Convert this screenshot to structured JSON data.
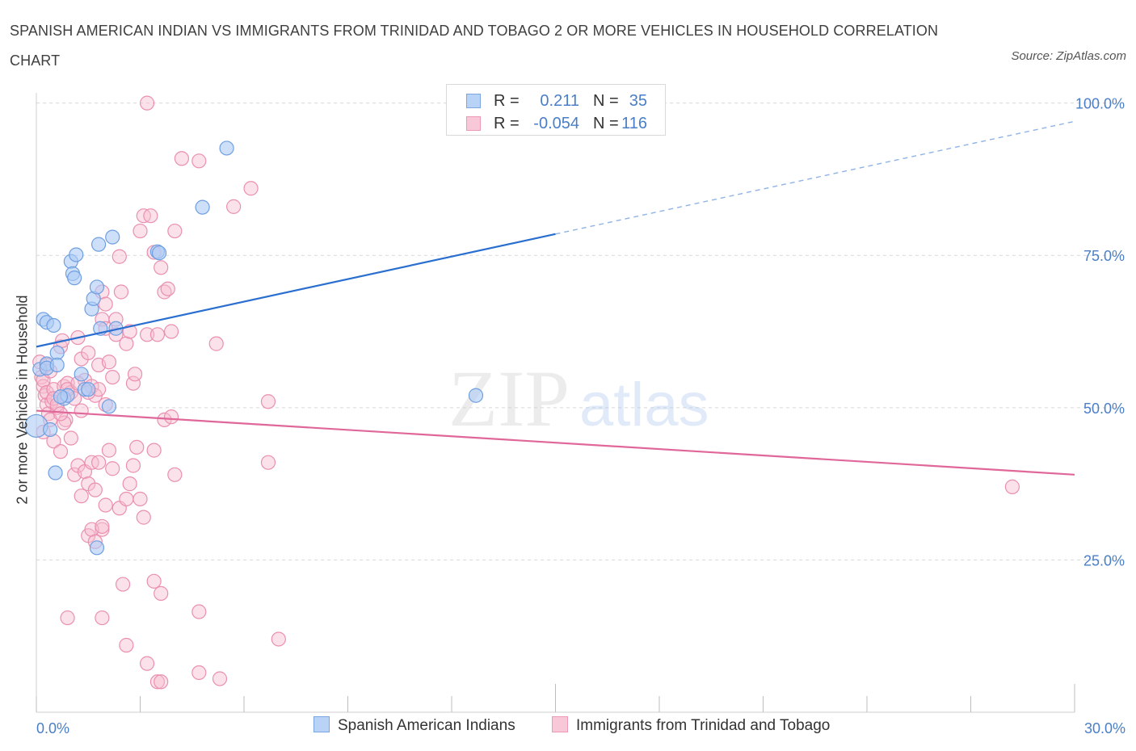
{
  "title": "SPANISH AMERICAN INDIAN VS IMMIGRANTS FROM TRINIDAD AND TOBAGO 2 OR MORE VEHICLES IN HOUSEHOLD CORRELATION CHART",
  "source": "Source: ZipAtlas.com",
  "watermark": {
    "zip": "ZIP",
    "atlas": "atlas"
  },
  "legend": {
    "series1": {
      "r_label": "R =",
      "r_value": "0.211",
      "n_label": "N =",
      "n_value": "35"
    },
    "series2": {
      "r_label": "R =",
      "r_value": "-0.054",
      "n_label": "N =",
      "n_value": "116"
    }
  },
  "colors": {
    "blue_fill": "#aecbf5",
    "blue_stroke": "#6f9fe0",
    "blue_line": "#2a6fcf",
    "pink_fill": "#f7bfd0",
    "pink_stroke": "#ea8fb0",
    "pink_line": "#e0679a",
    "axis_text": "#4a7fc8",
    "grid": "#d8d8d8"
  },
  "chart_data": {
    "type": "scatter",
    "title": "SPANISH AMERICAN INDIAN VS IMMIGRANTS FROM TRINIDAD AND TOBAGO 2 OR MORE VEHICLES IN HOUSEHOLD CORRELATION CHART",
    "xlabel": "",
    "ylabel": "2 or more Vehicles in Household",
    "xlim": [
      0,
      30
    ],
    "ylim": [
      0,
      103
    ],
    "x_tick_labels": [
      "0.0%",
      "30.0%"
    ],
    "y_ticks": [
      25,
      50,
      75,
      100
    ],
    "y_tick_labels": [
      "25.0%",
      "50.0%",
      "75.0%",
      "100.0%"
    ],
    "legend_position": "bottom",
    "series": [
      {
        "name": "Spanish American Indians",
        "R": 0.211,
        "N": 35,
        "trend": {
          "x0": 0,
          "y0": 60.0,
          "x1": 15,
          "y1": 78.5,
          "dash_to_x": 30,
          "dash_to_y": 97.0
        },
        "points": [
          [
            0.0,
            47.0
          ],
          [
            0.1,
            56.3
          ],
          [
            0.2,
            64.5
          ],
          [
            0.3,
            64.0
          ],
          [
            0.5,
            63.5
          ],
          [
            0.3,
            57.2
          ],
          [
            0.4,
            46.4
          ],
          [
            0.6,
            59.0
          ],
          [
            0.8,
            51.5
          ],
          [
            0.9,
            52.0
          ],
          [
            1.0,
            74.0
          ],
          [
            1.05,
            72.0
          ],
          [
            1.1,
            71.3
          ],
          [
            1.15,
            75.1
          ],
          [
            1.3,
            55.5
          ],
          [
            1.4,
            53.0
          ],
          [
            1.5,
            53.0
          ],
          [
            1.6,
            66.2
          ],
          [
            1.65,
            67.9
          ],
          [
            1.75,
            69.8
          ],
          [
            1.8,
            76.8
          ],
          [
            1.85,
            63.0
          ],
          [
            2.1,
            50.2
          ],
          [
            2.2,
            78.0
          ],
          [
            2.3,
            63.0
          ],
          [
            3.5,
            75.6
          ],
          [
            3.55,
            75.4
          ],
          [
            4.8,
            82.9
          ],
          [
            5.5,
            92.6
          ],
          [
            12.7,
            52.0
          ],
          [
            0.55,
            39.3
          ],
          [
            1.75,
            27.0
          ],
          [
            0.3,
            56.5
          ],
          [
            0.6,
            57.0
          ],
          [
            0.7,
            51.8
          ]
        ]
      },
      {
        "name": "Immigrants from Trinidad and Tobago",
        "R": -0.054,
        "N": 116,
        "trend": {
          "x0": 0,
          "y0": 49.5,
          "x1": 30,
          "y1": 39.0
        },
        "points": [
          [
            0.1,
            57.5
          ],
          [
            0.15,
            55.0
          ],
          [
            0.2,
            53.5
          ],
          [
            0.25,
            52.0
          ],
          [
            0.3,
            50.5
          ],
          [
            0.35,
            49.0
          ],
          [
            0.4,
            48.0
          ],
          [
            0.2,
            54.5
          ],
          [
            0.3,
            52.5
          ],
          [
            0.45,
            51.0
          ],
          [
            0.5,
            53.0
          ],
          [
            0.6,
            50.0
          ],
          [
            0.7,
            60.0
          ],
          [
            0.75,
            61.0
          ],
          [
            0.8,
            53.5
          ],
          [
            0.85,
            48.0
          ],
          [
            0.9,
            54.0
          ],
          [
            1.0,
            52.5
          ],
          [
            1.1,
            51.5
          ],
          [
            1.2,
            61.5
          ],
          [
            1.3,
            58.0
          ],
          [
            1.4,
            54.5
          ],
          [
            1.5,
            59.0
          ],
          [
            1.6,
            53.5
          ],
          [
            1.7,
            52.0
          ],
          [
            1.8,
            57.0
          ],
          [
            1.9,
            64.5
          ],
          [
            2.0,
            63.0
          ],
          [
            1.9,
            69.0
          ],
          [
            2.0,
            67.0
          ],
          [
            2.1,
            57.5
          ],
          [
            2.2,
            55.0
          ],
          [
            2.3,
            64.5
          ],
          [
            2.4,
            74.8
          ],
          [
            2.45,
            69.0
          ],
          [
            2.6,
            60.5
          ],
          [
            2.7,
            62.5
          ],
          [
            2.8,
            54.0
          ],
          [
            2.85,
            55.5
          ],
          [
            3.0,
            79.0
          ],
          [
            3.1,
            81.5
          ],
          [
            3.2,
            62.0
          ],
          [
            3.3,
            81.5
          ],
          [
            3.4,
            75.5
          ],
          [
            3.5,
            62.0
          ],
          [
            3.6,
            73.0
          ],
          [
            3.7,
            69.0
          ],
          [
            3.8,
            69.5
          ],
          [
            3.9,
            62.5
          ],
          [
            4.0,
            79.0
          ],
          [
            4.2,
            90.9
          ],
          [
            4.7,
            90.5
          ],
          [
            5.2,
            60.5
          ],
          [
            5.7,
            83.0
          ],
          [
            6.2,
            86.0
          ],
          [
            6.7,
            51.0
          ],
          [
            3.2,
            100.0
          ],
          [
            0.5,
            44.5
          ],
          [
            0.7,
            42.8
          ],
          [
            0.8,
            47.5
          ],
          [
            1.0,
            45.0
          ],
          [
            1.1,
            39.0
          ],
          [
            1.2,
            40.5
          ],
          [
            1.3,
            35.5
          ],
          [
            1.4,
            39.5
          ],
          [
            1.5,
            37.5
          ],
          [
            1.6,
            41.0
          ],
          [
            1.7,
            36.5
          ],
          [
            1.8,
            41.0
          ],
          [
            1.9,
            30.0
          ],
          [
            2.0,
            34.0
          ],
          [
            2.1,
            43.0
          ],
          [
            2.2,
            40.0
          ],
          [
            2.4,
            33.5
          ],
          [
            2.6,
            35.0
          ],
          [
            2.7,
            37.5
          ],
          [
            2.8,
            40.5
          ],
          [
            2.9,
            43.5
          ],
          [
            3.0,
            35.0
          ],
          [
            3.1,
            32.0
          ],
          [
            3.4,
            43.0
          ],
          [
            3.7,
            48.0
          ],
          [
            4.0,
            39.0
          ],
          [
            3.9,
            48.5
          ],
          [
            6.7,
            41.0
          ],
          [
            1.5,
            29.0
          ],
          [
            1.6,
            30.0
          ],
          [
            1.7,
            28.0
          ],
          [
            1.9,
            30.5
          ],
          [
            2.5,
            21.0
          ],
          [
            3.4,
            21.5
          ],
          [
            3.6,
            19.5
          ],
          [
            4.7,
            16.5
          ],
          [
            0.9,
            15.5
          ],
          [
            1.9,
            15.5
          ],
          [
            2.6,
            11.0
          ],
          [
            3.2,
            8.0
          ],
          [
            3.5,
            5.0
          ],
          [
            3.6,
            5.0
          ],
          [
            4.7,
            6.5
          ],
          [
            5.3,
            5.5
          ],
          [
            7.0,
            12.0
          ],
          [
            28.2,
            37.0
          ],
          [
            0.2,
            46.0
          ],
          [
            0.3,
            57.0
          ],
          [
            0.4,
            56.0
          ],
          [
            0.5,
            51.5
          ],
          [
            0.6,
            50.5
          ],
          [
            0.9,
            53.0
          ],
          [
            1.2,
            54.0
          ],
          [
            1.3,
            49.5
          ],
          [
            1.5,
            52.5
          ],
          [
            1.8,
            53.0
          ],
          [
            2.0,
            50.5
          ],
          [
            2.3,
            62.0
          ],
          [
            0.7,
            49.0
          ]
        ]
      }
    ]
  },
  "bottom_legend": {
    "series1": "Spanish American Indians",
    "series2": "Immigrants from Trinidad and Tobago"
  }
}
